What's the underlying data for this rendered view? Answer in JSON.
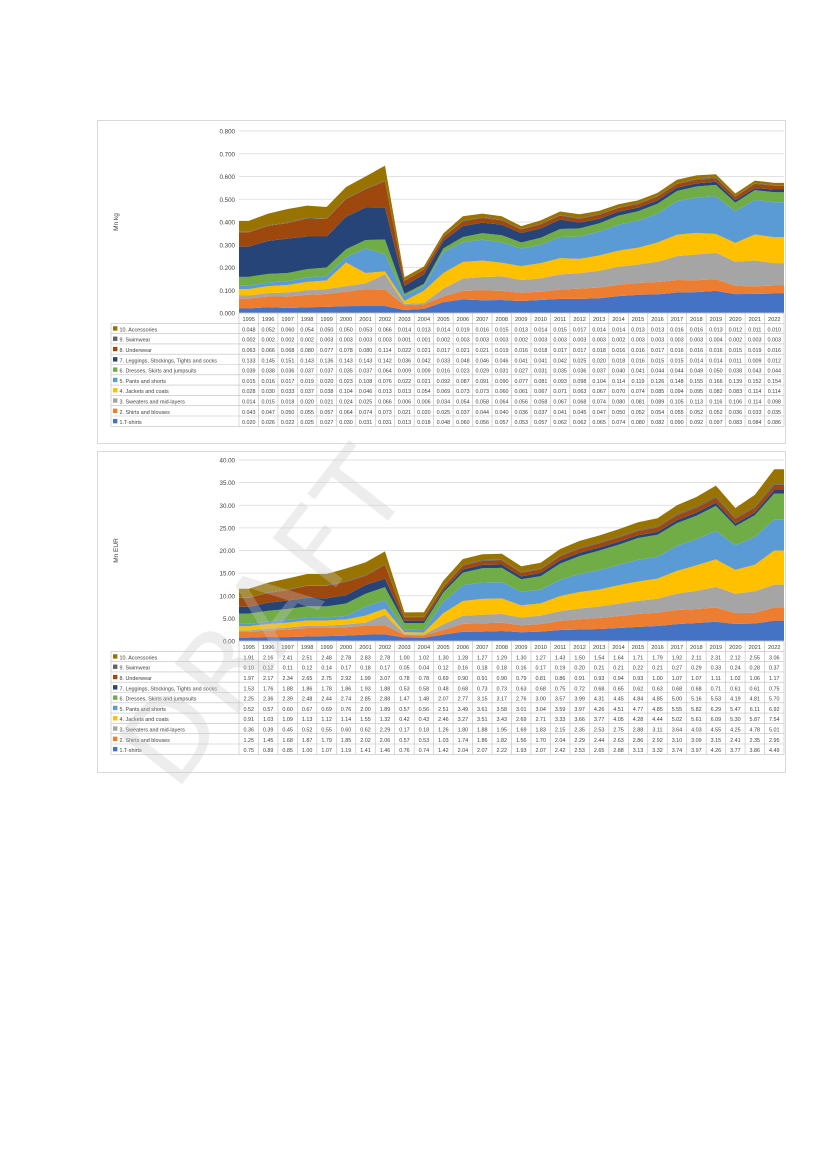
{
  "page": {
    "watermark": "DRAFT"
  },
  "chart_data": [
    {
      "type": "area",
      "stacked": true,
      "ylabel": "Mn kg",
      "ylim": [
        0,
        0.8
      ],
      "yticks": [
        "0.000",
        "0.100",
        "0.200",
        "0.300",
        "0.400",
        "0.500",
        "0.600",
        "0.700",
        "0.800"
      ],
      "grid": true,
      "legend": "table-below",
      "x": [
        "1995",
        "1996",
        "1997",
        "1998",
        "1999",
        "2000",
        "2001",
        "2002",
        "2003",
        "2004",
        "2005",
        "2006",
        "2007",
        "2008",
        "2009",
        "2010",
        "2011",
        "2012",
        "2013",
        "2014",
        "2015",
        "2016",
        "2017",
        "2018",
        "2019",
        "2020",
        "2021",
        "2022"
      ],
      "series": [
        {
          "name": "1.T-shirts",
          "color": "#4472c4",
          "values": [
            "0.020",
            "0.026",
            "0.022",
            "0.025",
            "0.027",
            "0.030",
            "0.031",
            "0.031",
            "0.013",
            "0.018",
            "0.048",
            "0.060",
            "0.056",
            "0.057",
            "0.053",
            "0.057",
            "0.062",
            "0.062",
            "0.065",
            "0.074",
            "0.080",
            "0.082",
            "0.090",
            "0.092",
            "0.097",
            "0.083",
            "0.084",
            "0.086"
          ]
        },
        {
          "name": "2. Shirts and blouses",
          "color": "#ed7d31",
          "values": [
            "0.043",
            "0.047",
            "0.050",
            "0.055",
            "0.057",
            "0.064",
            "0.074",
            "0.073",
            "0.021",
            "0.020",
            "0.025",
            "0.037",
            "0.044",
            "0.040",
            "0.036",
            "0.037",
            "0.041",
            "0.045",
            "0.047",
            "0.050",
            "0.052",
            "0.054",
            "0.055",
            "0.052",
            "0.052",
            "0.036",
            "0.033",
            "0.035"
          ]
        },
        {
          "name": "3. Sweaters and mid-layers",
          "color": "#a5a5a5",
          "values": [
            "0.014",
            "0.015",
            "0.018",
            "0.020",
            "0.021",
            "0.024",
            "0.025",
            "0.066",
            "0.006",
            "0.006",
            "0.034",
            "0.054",
            "0.058",
            "0.064",
            "0.056",
            "0.058",
            "0.067",
            "0.068",
            "0.074",
            "0.080",
            "0.081",
            "0.089",
            "0.105",
            "0.113",
            "0.116",
            "0.106",
            "0.114",
            "0.098"
          ]
        },
        {
          "name": "4. Jackets and coats",
          "color": "#ffc000",
          "values": [
            "0.028",
            "0.030",
            "0.033",
            "0.037",
            "0.038",
            "0.104",
            "0.046",
            "0.013",
            "0.013",
            "0.054",
            "0.069",
            "0.073",
            "0.073",
            "0.060",
            "0.061",
            "0.067",
            "0.071",
            "0.063",
            "0.067",
            "0.070",
            "0.074",
            "0.085",
            "0.094",
            "0.095",
            "0.082",
            "0.083",
            "0.114",
            "0.114"
          ]
        },
        {
          "name": "5. Pants and shorts",
          "color": "#5b9bd5",
          "values": [
            "0.015",
            "0.016",
            "0.017",
            "0.019",
            "0.020",
            "0.023",
            "0.108",
            "0.076",
            "0.022",
            "0.021",
            "0.092",
            "0.087",
            "0.091",
            "0.090",
            "0.077",
            "0.081",
            "0.093",
            "0.098",
            "0.104",
            "0.114",
            "0.119",
            "0.126",
            "0.148",
            "0.155",
            "0.166",
            "0.139",
            "0.152",
            "0.154"
          ]
        },
        {
          "name": "6. Dresses, Skirts and jumpsuits",
          "color": "#70ad47",
          "values": [
            "0.039",
            "0.038",
            "0.036",
            "0.037",
            "0.037",
            "0.035",
            "0.037",
            "0.064",
            "0.009",
            "0.009",
            "0.016",
            "0.023",
            "0.029",
            "0.031",
            "0.027",
            "0.031",
            "0.035",
            "0.036",
            "0.037",
            "0.040",
            "0.041",
            "0.044",
            "0.044",
            "0.049",
            "0.050",
            "0.038",
            "0.043",
            "0.044"
          ]
        },
        {
          "name": "7. Leggings, Stockings, Tights and socks",
          "color": "#264478",
          "values": [
            "0.133",
            "0.145",
            "0.151",
            "0.143",
            "0.136",
            "0.143",
            "0.143",
            "0.142",
            "0.036",
            "0.042",
            "0.033",
            "0.048",
            "0.046",
            "0.046",
            "0.041",
            "0.041",
            "0.042",
            "0.025",
            "0.020",
            "0.018",
            "0.016",
            "0.015",
            "0.015",
            "0.014",
            "0.014",
            "0.011",
            "0.009",
            "0.012"
          ]
        },
        {
          "name": "8. Underwear",
          "color": "#9e480e",
          "values": [
            "0.063",
            "0.066",
            "0.068",
            "0.080",
            "0.077",
            "0.078",
            "0.080",
            "0.114",
            "0.022",
            "0.021",
            "0.017",
            "0.021",
            "0.021",
            "0.019",
            "0.016",
            "0.018",
            "0.017",
            "0.017",
            "0.018",
            "0.016",
            "0.016",
            "0.017",
            "0.016",
            "0.016",
            "0.016",
            "0.015",
            "0.019",
            "0.016"
          ]
        },
        {
          "name": "9. Swimwear",
          "color": "#636363",
          "values": [
            "0.002",
            "0.002",
            "0.002",
            "0.002",
            "0.003",
            "0.003",
            "0.003",
            "0.003",
            "0.001",
            "0.001",
            "0.002",
            "0.003",
            "0.003",
            "0.003",
            "0.002",
            "0.003",
            "0.003",
            "0.003",
            "0.003",
            "0.002",
            "0.003",
            "0.003",
            "0.003",
            "0.003",
            "0.004",
            "0.002",
            "0.003",
            "0.003"
          ]
        },
        {
          "name": "10. Accessories",
          "color": "#997300",
          "values": [
            "0.048",
            "0.052",
            "0.060",
            "0.054",
            "0.050",
            "0.050",
            "0.053",
            "0.066",
            "0.014",
            "0.013",
            "0.014",
            "0.019",
            "0.016",
            "0.015",
            "0.013",
            "0.014",
            "0.015",
            "0.017",
            "0.014",
            "0.014",
            "0.013",
            "0.013",
            "0.016",
            "0.016",
            "0.013",
            "0.012",
            "0.011",
            "0.010"
          ]
        }
      ]
    },
    {
      "type": "area",
      "stacked": true,
      "ylabel": "Mn EUR",
      "ylim": [
        0,
        40
      ],
      "yticks": [
        "0.00",
        "5.00",
        "10.00",
        "15.00",
        "20.00",
        "25.00",
        "30.00",
        "35.00",
        "40.00"
      ],
      "grid": true,
      "legend": "table-below",
      "x": [
        "1995",
        "1996",
        "1997",
        "1998",
        "1999",
        "2000",
        "2001",
        "2002",
        "2003",
        "2004",
        "2005",
        "2006",
        "2007",
        "2008",
        "2009",
        "2010",
        "2011",
        "2012",
        "2013",
        "2014",
        "2015",
        "2016",
        "2017",
        "2018",
        "2019",
        "2020",
        "2021",
        "2022"
      ],
      "series": [
        {
          "name": "1.T-shirts",
          "color": "#4472c4",
          "values": [
            "0.75",
            "0.89",
            "0.85",
            "1.00",
            "1.07",
            "1.19",
            "1.41",
            "1.46",
            "0.76",
            "0.74",
            "1.42",
            "2.04",
            "2.07",
            "2.22",
            "1.93",
            "2.07",
            "2.42",
            "2.53",
            "2.65",
            "2.88",
            "3.13",
            "3.32",
            "3.74",
            "3.97",
            "4.26",
            "3.77",
            "3.86",
            "4.49"
          ]
        },
        {
          "name": "2. Shirts and blouses",
          "color": "#ed7d31",
          "values": [
            "1.25",
            "1.45",
            "1.68",
            "1.87",
            "1.79",
            "1.85",
            "2.02",
            "2.06",
            "0.57",
            "0.53",
            "1.03",
            "1.74",
            "1.86",
            "1.82",
            "1.56",
            "1.70",
            "2.04",
            "2.29",
            "2.44",
            "2.63",
            "2.86",
            "2.92",
            "3.10",
            "3.09",
            "3.15",
            "2.41",
            "2.35",
            "2.95"
          ]
        },
        {
          "name": "3. Sweaters and mid-layers",
          "color": "#a5a5a5",
          "values": [
            "0.36",
            "0.39",
            "0.45",
            "0.52",
            "0.55",
            "0.60",
            "0.62",
            "2.29",
            "0.17",
            "0.18",
            "1.26",
            "1.80",
            "1.88",
            "1.95",
            "1.69",
            "1.83",
            "2.15",
            "2.35",
            "2.53",
            "2.75",
            "2.88",
            "3.11",
            "3.64",
            "4.03",
            "4.55",
            "4.25",
            "4.78",
            "5.01"
          ]
        },
        {
          "name": "4. Jackets and coats",
          "color": "#ffc000",
          "values": [
            "0.91",
            "1.03",
            "1.09",
            "1.13",
            "1.12",
            "1.14",
            "1.55",
            "1.32",
            "0.42",
            "0.43",
            "2.46",
            "3.27",
            "3.51",
            "3.43",
            "2.69",
            "2.71",
            "3.33",
            "3.66",
            "3.77",
            "4.05",
            "4.28",
            "4.44",
            "5.02",
            "5.61",
            "6.09",
            "5.30",
            "5.87",
            "7.54"
          ]
        },
        {
          "name": "5. Pants and shorts",
          "color": "#5b9bd5",
          "values": [
            "0.52",
            "0.57",
            "0.60",
            "0.67",
            "0.69",
            "0.76",
            "2.00",
            "1.89",
            "0.57",
            "0.56",
            "2.51",
            "3.49",
            "3.61",
            "3.58",
            "3.01",
            "3.04",
            "3.59",
            "3.97",
            "4.26",
            "4.51",
            "4.77",
            "4.85",
            "5.55",
            "5.82",
            "6.29",
            "5.47",
            "6.11",
            "6.92"
          ]
        },
        {
          "name": "6. Dresses, Skirts and jumpsuits",
          "color": "#70ad47",
          "values": [
            "2.25",
            "2.36",
            "2.39",
            "2.48",
            "2.44",
            "2.74",
            "2.85",
            "2.88",
            "1.47",
            "1.48",
            "2.07",
            "2.77",
            "3.15",
            "3.17",
            "2.76",
            "3.00",
            "3.57",
            "3.99",
            "4.31",
            "4.45",
            "4.84",
            "4.85",
            "5.00",
            "5.16",
            "5.53",
            "4.19",
            "4.81",
            "5.70"
          ]
        },
        {
          "name": "7. Leggings, Stockings, Tights and socks",
          "color": "#264478",
          "values": [
            "1.53",
            "1.76",
            "1.88",
            "1.86",
            "1.78",
            "1.86",
            "1.93",
            "1.88",
            "0.53",
            "0.58",
            "0.48",
            "0.68",
            "0.73",
            "0.73",
            "0.63",
            "0.68",
            "0.75",
            "0.72",
            "0.68",
            "0.65",
            "0.62",
            "0.63",
            "0.68",
            "0.68",
            "0.71",
            "0.61",
            "0.61",
            "0.75"
          ]
        },
        {
          "name": "8. Underwear",
          "color": "#9e480e",
          "values": [
            "1.97",
            "2.17",
            "2.34",
            "2.65",
            "2.75",
            "2.92",
            "1.99",
            "3.07",
            "0.78",
            "0.78",
            "0.69",
            "0.90",
            "0.91",
            "0.90",
            "0.79",
            "0.81",
            "0.86",
            "0.91",
            "0.93",
            "0.94",
            "0.93",
            "1.00",
            "1.07",
            "1.07",
            "1.11",
            "1.02",
            "1.06",
            "1.17"
          ]
        },
        {
          "name": "9. Swimwear",
          "color": "#636363",
          "values": [
            "0.10",
            "0.12",
            "0.11",
            "0.12",
            "0.14",
            "0.17",
            "0.18",
            "0.17",
            "0.05",
            "0.04",
            "0.12",
            "0.16",
            "0.18",
            "0.18",
            "0.16",
            "0.17",
            "0.19",
            "0.20",
            "0.21",
            "0.21",
            "0.22",
            "0.21",
            "0.27",
            "0.29",
            "0.33",
            "0.24",
            "0.28",
            "0.37"
          ]
        },
        {
          "name": "10. Accessories",
          "color": "#997300",
          "values": [
            "1.91",
            "2.16",
            "2.41",
            "2.51",
            "2.48",
            "2.78",
            "2.83",
            "2.78",
            "1.00",
            "1.02",
            "1.30",
            "1.28",
            "1.27",
            "1.29",
            "1.30",
            "1.27",
            "1.43",
            "1.50",
            "1.54",
            "1.64",
            "1.71",
            "1.79",
            "1.92",
            "2.11",
            "2.31",
            "2.12",
            "2.55",
            "3.06"
          ]
        }
      ]
    }
  ]
}
